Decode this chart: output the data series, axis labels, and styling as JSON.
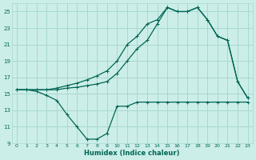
{
  "xlabel": "Humidex (Indice chaleur)",
  "bg_color": "#cceee8",
  "grid_color": "#a8d8d0",
  "line_color": "#006655",
  "xlim": [
    -0.5,
    23.5
  ],
  "ylim": [
    9,
    26
  ],
  "yticks": [
    9,
    11,
    13,
    15,
    17,
    19,
    21,
    23,
    25
  ],
  "xticks": [
    0,
    1,
    2,
    3,
    4,
    5,
    6,
    7,
    8,
    9,
    10,
    11,
    12,
    13,
    14,
    15,
    16,
    17,
    18,
    19,
    20,
    21,
    22,
    23
  ],
  "line1_x": [
    0,
    1,
    2,
    3,
    4,
    5,
    6,
    7,
    8,
    9,
    10,
    11,
    12,
    13,
    14,
    15,
    16,
    17,
    18,
    19,
    20,
    21,
    22,
    23
  ],
  "line1_y": [
    15.5,
    15.5,
    15.3,
    14.8,
    14.2,
    12.5,
    11.0,
    9.5,
    9.5,
    10.2,
    13.5,
    13.5,
    14.0,
    14.0,
    14.0,
    14.0,
    14.0,
    14.0,
    14.0,
    14.0,
    14.0,
    14.0,
    14.0,
    14.0
  ],
  "line2_x": [
    0,
    1,
    2,
    3,
    4,
    5,
    6,
    7,
    8,
    9,
    10,
    11,
    12,
    13,
    14,
    15,
    16,
    17,
    18,
    19,
    20,
    21,
    22,
    23
  ],
  "line2_y": [
    15.5,
    15.5,
    15.5,
    15.5,
    15.5,
    15.7,
    15.8,
    16.0,
    16.2,
    16.5,
    17.5,
    19.0,
    20.5,
    21.5,
    23.5,
    25.5,
    25.0,
    25.0,
    25.5,
    24.0,
    22.0,
    21.5,
    16.5,
    14.5
  ],
  "line3_x": [
    0,
    1,
    2,
    3,
    4,
    5,
    6,
    7,
    8,
    9,
    10,
    11,
    12,
    13,
    14,
    15,
    16,
    17,
    18,
    19,
    20,
    21,
    22,
    23
  ],
  "line3_y": [
    15.5,
    15.5,
    15.5,
    15.5,
    15.7,
    16.0,
    16.3,
    16.7,
    17.2,
    17.8,
    19.0,
    21.0,
    22.0,
    23.5,
    24.0,
    25.5,
    25.0,
    25.0,
    25.5,
    24.0,
    22.0,
    21.5,
    16.5,
    14.5
  ]
}
